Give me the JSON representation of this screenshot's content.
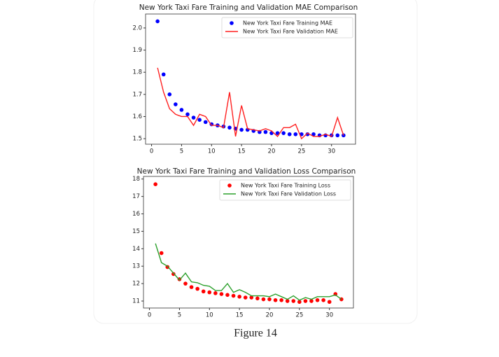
{
  "chart_data": [
    {
      "type": "line",
      "title": "New York Taxi Fare Training and Validation MAE Comparison",
      "x": [
        1,
        2,
        3,
        4,
        5,
        6,
        7,
        8,
        9,
        10,
        11,
        12,
        13,
        14,
        15,
        16,
        17,
        18,
        19,
        20,
        21,
        22,
        23,
        24,
        25,
        26,
        27,
        28,
        29,
        30,
        31,
        32
      ],
      "series": [
        {
          "name": "New York Taxi Fare Training MAE",
          "color": "#0000ff",
          "style": "markers",
          "values": [
            2.03,
            1.79,
            1.7,
            1.655,
            1.63,
            1.61,
            1.595,
            1.585,
            1.575,
            1.565,
            1.56,
            1.555,
            1.55,
            1.545,
            1.54,
            1.54,
            1.535,
            1.53,
            1.53,
            1.525,
            1.525,
            1.525,
            1.52,
            1.52,
            1.52,
            1.52,
            1.52,
            1.515,
            1.515,
            1.515,
            1.515,
            1.515
          ]
        },
        {
          "name": "New York Taxi Fare Validation MAE",
          "color": "#ff2020",
          "style": "line",
          "values": [
            1.82,
            1.71,
            1.635,
            1.61,
            1.6,
            1.6,
            1.56,
            1.61,
            1.6,
            1.56,
            1.56,
            1.55,
            1.71,
            1.51,
            1.65,
            1.545,
            1.54,
            1.535,
            1.545,
            1.535,
            1.51,
            1.55,
            1.55,
            1.565,
            1.5,
            1.525,
            1.51,
            1.51,
            1.52,
            1.51,
            1.595,
            1.515
          ]
        }
      ],
      "xlim": [
        -1,
        34
      ],
      "xticks": [
        0,
        5,
        10,
        15,
        20,
        25,
        30
      ],
      "ylim": [
        1.475,
        2.063
      ],
      "yticks": [
        1.5,
        1.6,
        1.7,
        1.8,
        1.9,
        {
          "value": 2.0,
          "label": "2.0"
        }
      ],
      "legend": "upper right"
    },
    {
      "type": "line",
      "title": "New York Taxi Fare Training and Validation Loss Comparison",
      "x": [
        1,
        2,
        3,
        4,
        5,
        6,
        7,
        8,
        9,
        10,
        11,
        12,
        13,
        14,
        15,
        16,
        17,
        18,
        19,
        20,
        21,
        22,
        23,
        24,
        25,
        26,
        27,
        28,
        29,
        30,
        31,
        32
      ],
      "series": [
        {
          "name": "New York Taxi Fare Training Loss",
          "color": "#ff0000",
          "style": "markers",
          "values": [
            17.7,
            13.75,
            12.95,
            12.55,
            12.25,
            12.0,
            11.8,
            11.7,
            11.55,
            11.5,
            11.45,
            11.4,
            11.35,
            11.3,
            11.25,
            11.2,
            11.2,
            11.15,
            11.1,
            11.1,
            11.05,
            11.05,
            11.0,
            11.0,
            10.95,
            11.0,
            11.0,
            11.05,
            11.05,
            10.95,
            11.4,
            11.1
          ]
        },
        {
          "name": "New York Taxi Fare Validation Loss",
          "color": "#2ca02c",
          "style": "line",
          "values": [
            14.3,
            13.2,
            13.0,
            12.6,
            12.2,
            12.6,
            12.1,
            12.05,
            11.9,
            11.85,
            11.6,
            11.6,
            12.0,
            11.5,
            11.65,
            11.5,
            11.3,
            11.3,
            11.3,
            11.25,
            11.4,
            11.25,
            11.1,
            11.3,
            11.05,
            11.2,
            11.1,
            11.25,
            11.25,
            11.25,
            11.35,
            11.1
          ]
        }
      ],
      "xlim": [
        -1,
        34
      ],
      "xticks": [
        0,
        5,
        10,
        15,
        20,
        25,
        30
      ],
      "ylim": [
        10.6,
        18.15
      ],
      "yticks": [
        11,
        12,
        13,
        14,
        15,
        16,
        17,
        18
      ],
      "legend": "upper right"
    }
  ],
  "caption": "Figure 14"
}
